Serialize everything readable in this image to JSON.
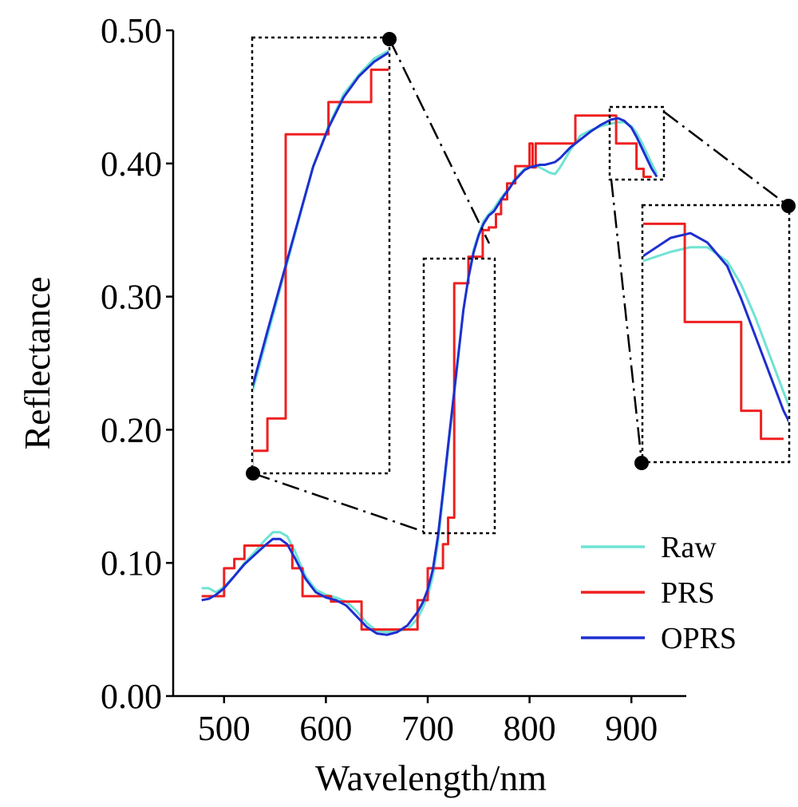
{
  "chart_data": {
    "type": "line",
    "xlabel": "Wavelength/nm",
    "ylabel": "Reflectance",
    "xlim": [
      450,
      950
    ],
    "ylim": [
      0,
      0.5
    ],
    "xticks": [
      500,
      600,
      700,
      800,
      900
    ],
    "xtick_labels": [
      "500",
      "600",
      "700",
      "800",
      "900"
    ],
    "yticks": [
      0,
      0.1,
      0.2,
      0.3,
      0.4,
      0.5
    ],
    "ytick_labels": [
      "0.00",
      "0.10",
      "0.20",
      "0.30",
      "0.40",
      "0.50"
    ],
    "legend_position": "bottom-right",
    "series": [
      {
        "name": "Raw",
        "color": "#6fe3d4",
        "x": [
          478,
          485,
          492,
          500,
          510,
          520,
          530,
          540,
          548,
          555,
          562,
          570,
          580,
          590,
          600,
          610,
          620,
          630,
          640,
          650,
          660,
          670,
          680,
          690,
          695,
          700,
          705,
          710,
          715,
          720,
          725,
          730,
          735,
          740,
          745,
          750,
          755,
          760,
          765,
          770,
          775,
          780,
          785,
          790,
          795,
          800,
          805,
          810,
          815,
          820,
          825,
          830,
          840,
          850,
          860,
          870,
          880,
          887,
          893,
          900,
          905,
          910,
          915,
          920,
          925
        ],
        "y": [
          0.081,
          0.081,
          0.078,
          0.082,
          0.09,
          0.1,
          0.108,
          0.117,
          0.123,
          0.123,
          0.12,
          0.108,
          0.09,
          0.08,
          0.076,
          0.074,
          0.071,
          0.064,
          0.055,
          0.049,
          0.048,
          0.049,
          0.05,
          0.058,
          0.066,
          0.075,
          0.09,
          0.115,
          0.15,
          0.185,
          0.22,
          0.255,
          0.29,
          0.315,
          0.335,
          0.347,
          0.357,
          0.362,
          0.366,
          0.372,
          0.377,
          0.382,
          0.388,
          0.392,
          0.396,
          0.398,
          0.398,
          0.397,
          0.395,
          0.393,
          0.392,
          0.397,
          0.41,
          0.421,
          0.425,
          0.428,
          0.43,
          0.431,
          0.431,
          0.428,
          0.423,
          0.416,
          0.408,
          0.4,
          0.392
        ]
      },
      {
        "name": "PRS",
        "color": "#ef2020",
        "x": [
          478,
          490,
          490,
          500,
          500,
          510,
          510,
          520,
          520,
          545,
          545,
          567,
          567,
          577,
          577,
          588,
          588,
          605,
          605,
          627,
          627,
          635,
          635,
          657,
          657,
          685,
          685,
          690,
          690,
          700,
          700,
          707,
          707,
          715,
          715,
          720,
          720,
          726,
          726,
          734,
          734,
          740,
          740,
          748,
          748,
          754,
          754,
          760,
          760,
          767,
          767,
          772,
          772,
          778,
          778,
          786,
          786,
          795,
          795,
          800,
          800,
          803,
          803,
          806,
          806,
          830,
          830,
          845,
          845,
          870,
          870,
          885,
          885,
          895,
          895,
          905,
          905,
          912,
          912,
          920
        ],
        "y": [
          0.075,
          0.075,
          0.075,
          0.075,
          0.096,
          0.096,
          0.103,
          0.103,
          0.113,
          0.113,
          0.113,
          0.113,
          0.096,
          0.096,
          0.075,
          0.075,
          0.075,
          0.075,
          0.071,
          0.071,
          0.071,
          0.071,
          0.05,
          0.05,
          0.05,
          0.05,
          0.05,
          0.05,
          0.072,
          0.072,
          0.096,
          0.096,
          0.096,
          0.096,
          0.114,
          0.114,
          0.134,
          0.134,
          0.31,
          0.31,
          0.31,
          0.31,
          0.33,
          0.33,
          0.33,
          0.33,
          0.35,
          0.35,
          0.352,
          0.352,
          0.362,
          0.362,
          0.373,
          0.373,
          0.385,
          0.385,
          0.398,
          0.398,
          0.398,
          0.398,
          0.415,
          0.415,
          0.397,
          0.397,
          0.415,
          0.415,
          0.415,
          0.415,
          0.436,
          0.436,
          0.436,
          0.436,
          0.415,
          0.415,
          0.415,
          0.415,
          0.396,
          0.396,
          0.39,
          0.39
        ]
      },
      {
        "name": "OPRS",
        "color": "#1e2fd0",
        "x": [
          478,
          485,
          492,
          500,
          510,
          520,
          530,
          540,
          548,
          555,
          562,
          570,
          580,
          590,
          600,
          610,
          620,
          630,
          640,
          650,
          660,
          670,
          680,
          690,
          695,
          700,
          705,
          710,
          715,
          720,
          725,
          730,
          735,
          740,
          745,
          750,
          755,
          760,
          765,
          770,
          775,
          780,
          785,
          790,
          795,
          800,
          805,
          810,
          815,
          820,
          825,
          830,
          840,
          850,
          860,
          870,
          880,
          887,
          893,
          900,
          905,
          910,
          915,
          920,
          925
        ],
        "y": [
          0.072,
          0.073,
          0.076,
          0.081,
          0.09,
          0.099,
          0.106,
          0.113,
          0.118,
          0.118,
          0.114,
          0.103,
          0.088,
          0.078,
          0.074,
          0.072,
          0.068,
          0.06,
          0.052,
          0.047,
          0.046,
          0.048,
          0.053,
          0.063,
          0.07,
          0.08,
          0.095,
          0.12,
          0.153,
          0.188,
          0.222,
          0.256,
          0.29,
          0.314,
          0.333,
          0.346,
          0.355,
          0.361,
          0.364,
          0.37,
          0.376,
          0.381,
          0.387,
          0.391,
          0.395,
          0.397,
          0.398,
          0.399,
          0.399,
          0.4,
          0.401,
          0.404,
          0.412,
          0.418,
          0.424,
          0.429,
          0.433,
          0.434,
          0.432,
          0.427,
          0.42,
          0.412,
          0.404,
          0.396,
          0.39
        ]
      }
    ]
  }
}
